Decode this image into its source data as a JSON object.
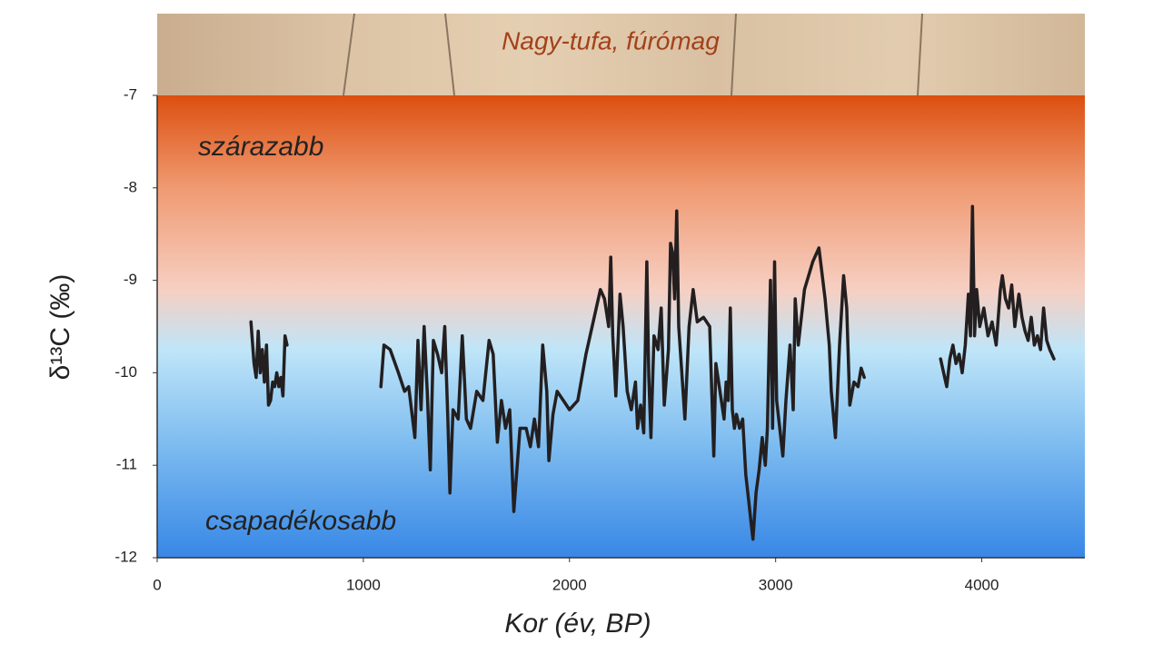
{
  "chart_data": {
    "type": "line",
    "photo_label": "Nagy-tufa, fúrómag",
    "annotations": [
      "szárazabb",
      "csapadékosabb"
    ],
    "x_label": "Kor (év, BP)",
    "y_label": "δ¹³C (‰)",
    "xlim": [
      0,
      4500
    ],
    "xticks": [
      0,
      1000,
      2000,
      3000,
      4000
    ],
    "ylim": [
      -12,
      -7
    ],
    "yticks": [
      -7,
      -8,
      -9,
      -10,
      -11,
      -12
    ],
    "series": [
      {
        "color": "#231f20",
        "x": [
          455,
          470,
          480,
          490,
          500,
          510,
          520,
          530,
          540,
          550,
          560,
          570,
          580,
          590,
          600,
          610,
          620,
          630,
          null,
          1085,
          1100,
          1130,
          1170,
          1200,
          1220,
          1250,
          1265,
          1280,
          1295,
          1310,
          1325,
          1340,
          1360,
          1380,
          1395,
          1410,
          1420,
          1435,
          1460,
          1480,
          1500,
          1520,
          1550,
          1580,
          1610,
          1630,
          1650,
          1670,
          1690,
          1710,
          1730,
          1760,
          1790,
          1810,
          1830,
          1850,
          1870,
          1890,
          1900,
          1920,
          1940,
          1970,
          2000,
          2040,
          2080,
          2120,
          2150,
          2170,
          2190,
          2200,
          2210,
          2225,
          2245,
          2260,
          2280,
          2300,
          2320,
          2330,
          2345,
          2360,
          2375,
          2385,
          2395,
          2410,
          2430,
          2445,
          2460,
          2480,
          2490,
          2500,
          2510,
          2520,
          2530,
          2545,
          2560,
          2580,
          2600,
          2620,
          2650,
          2680,
          2700,
          2710,
          2730,
          2750,
          2760,
          2770,
          2780,
          2790,
          2800,
          2810,
          2825,
          2840,
          2855,
          2870,
          2880,
          2890,
          2905,
          2920,
          2935,
          2950,
          2960,
          2975,
          2985,
          2995,
          3005,
          3020,
          3035,
          3050,
          3070,
          3085,
          3095,
          3110,
          3140,
          3180,
          3210,
          3240,
          3260,
          3270,
          3290,
          3310,
          3330,
          3345,
          3360,
          3380,
          3400,
          3415,
          3430,
          null,
          3800,
          3820,
          3830,
          3845,
          3860,
          3875,
          3890,
          3905,
          3920,
          3935,
          3945,
          3955,
          3965,
          3975,
          3990,
          4010,
          4030,
          4050,
          4070,
          4090,
          4100,
          4115,
          4130,
          4145,
          4160,
          4180,
          4195,
          4210,
          4225,
          4240,
          4255,
          4270,
          4285,
          4300,
          4315,
          4330,
          4350
        ],
        "values": [
          -9.45,
          -9.9,
          -10.05,
          -9.55,
          -10.0,
          -9.75,
          -10.1,
          -9.7,
          -10.35,
          -10.3,
          -10.1,
          -10.15,
          -10.0,
          -10.15,
          -10.05,
          -10.25,
          -9.6,
          -9.7,
          null,
          -10.15,
          -9.7,
          -9.75,
          -10.0,
          -10.2,
          -10.15,
          -10.7,
          -9.65,
          -10.4,
          -9.5,
          -10.2,
          -11.05,
          -9.65,
          -9.8,
          -10.0,
          -9.5,
          -10.5,
          -11.3,
          -10.4,
          -10.5,
          -9.6,
          -10.5,
          -10.6,
          -10.2,
          -10.3,
          -9.65,
          -9.8,
          -10.75,
          -10.3,
          -10.6,
          -10.4,
          -11.5,
          -10.6,
          -10.6,
          -10.8,
          -10.5,
          -10.8,
          -9.7,
          -10.2,
          -10.95,
          -10.45,
          -10.2,
          -10.3,
          -10.4,
          -10.3,
          -9.8,
          -9.4,
          -9.1,
          -9.2,
          -9.5,
          -8.75,
          -9.6,
          -10.25,
          -9.15,
          -9.5,
          -10.2,
          -10.4,
          -10.1,
          -10.6,
          -10.35,
          -10.65,
          -8.8,
          -10.05,
          -10.7,
          -9.6,
          -9.75,
          -9.3,
          -10.35,
          -9.75,
          -8.6,
          -8.7,
          -9.2,
          -8.25,
          -9.5,
          -10.0,
          -10.5,
          -9.5,
          -9.1,
          -9.45,
          -9.4,
          -9.5,
          -10.9,
          -9.9,
          -10.2,
          -10.5,
          -10.1,
          -10.3,
          -9.3,
          -10.4,
          -10.6,
          -10.45,
          -10.6,
          -10.5,
          -11.1,
          -11.4,
          -11.6,
          -11.8,
          -11.3,
          -11.05,
          -10.7,
          -11.0,
          -10.6,
          -9.0,
          -10.6,
          -8.8,
          -10.3,
          -10.6,
          -10.9,
          -10.3,
          -9.7,
          -10.4,
          -9.2,
          -9.7,
          -9.1,
          -8.8,
          -8.65,
          -9.2,
          -9.7,
          -10.2,
          -10.7,
          -9.7,
          -8.95,
          -9.3,
          -10.35,
          -10.1,
          -10.15,
          -9.95,
          -10.05,
          null,
          -9.85,
          -10.05,
          -10.15,
          -9.85,
          -9.7,
          -9.9,
          -9.8,
          -10.0,
          -9.7,
          -9.15,
          -9.6,
          -8.2,
          -9.6,
          -9.1,
          -9.5,
          -9.3,
          -9.6,
          -9.45,
          -9.7,
          -9.1,
          -8.95,
          -9.2,
          -9.3,
          -9.05,
          -9.5,
          -9.15,
          -9.4,
          -9.55,
          -9.65,
          -9.4,
          -9.7,
          -9.6,
          -9.75,
          -9.3,
          -9.65,
          -9.75,
          -9.85
        ]
      }
    ]
  }
}
